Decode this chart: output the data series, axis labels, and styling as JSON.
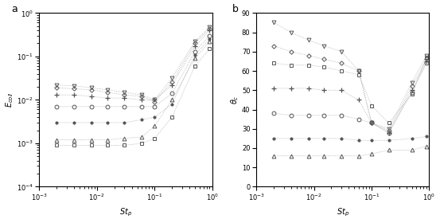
{
  "St_p": [
    0.002,
    0.004,
    0.008,
    0.015,
    0.03,
    0.06,
    0.1,
    0.2,
    0.5,
    0.9
  ],
  "Ecoll_invtri": [
    0.022,
    0.021,
    0.019,
    0.017,
    0.015,
    0.013,
    0.01,
    0.032,
    0.22,
    0.48
  ],
  "Ecoll_diamond": [
    0.019,
    0.018,
    0.017,
    0.015,
    0.013,
    0.012,
    0.009,
    0.026,
    0.2,
    0.44
  ],
  "Ecoll_plus": [
    0.013,
    0.013,
    0.012,
    0.011,
    0.011,
    0.01,
    0.01,
    0.022,
    0.17,
    0.4
  ],
  "Ecoll_circle": [
    0.007,
    0.007,
    0.007,
    0.007,
    0.007,
    0.007,
    0.007,
    0.014,
    0.13,
    0.3
  ],
  "Ecoll_dot": [
    0.003,
    0.003,
    0.003,
    0.003,
    0.003,
    0.0035,
    0.004,
    0.008,
    0.11,
    0.25
  ],
  "Ecoll_tri": [
    0.0012,
    0.0012,
    0.0012,
    0.0012,
    0.0013,
    0.0014,
    0.0025,
    0.01,
    0.09,
    0.22
  ],
  "Ecoll_square": [
    0.0009,
    0.0009,
    0.0009,
    0.0009,
    0.0009,
    0.001,
    0.0013,
    0.004,
    0.06,
    0.15
  ],
  "theta_invtri": [
    85,
    80,
    76,
    73,
    70,
    60,
    33,
    30,
    54,
    68
  ],
  "theta_diamond": [
    73,
    70,
    68,
    66,
    64,
    60,
    33,
    29,
    52,
    66
  ],
  "theta_square": [
    64,
    63,
    63,
    62,
    60,
    58,
    42,
    33,
    48,
    67
  ],
  "theta_plus": [
    51,
    51,
    51,
    50,
    50,
    45,
    33,
    28,
    50,
    65
  ],
  "theta_circle": [
    38,
    37,
    37,
    37,
    37,
    35,
    33,
    28,
    49,
    64
  ],
  "theta_dot": [
    25,
    25,
    25,
    25,
    25,
    24,
    24,
    24,
    25,
    26
  ],
  "theta_tri": [
    16,
    16,
    16,
    16,
    16,
    16,
    17,
    19,
    19,
    21
  ],
  "gray": "#aaaaaa",
  "dark": "#555555",
  "ms": 3.5,
  "lw": 0.6,
  "fontsize_label": 7,
  "fontsize_tick": 6,
  "fontsize_ab": 9
}
